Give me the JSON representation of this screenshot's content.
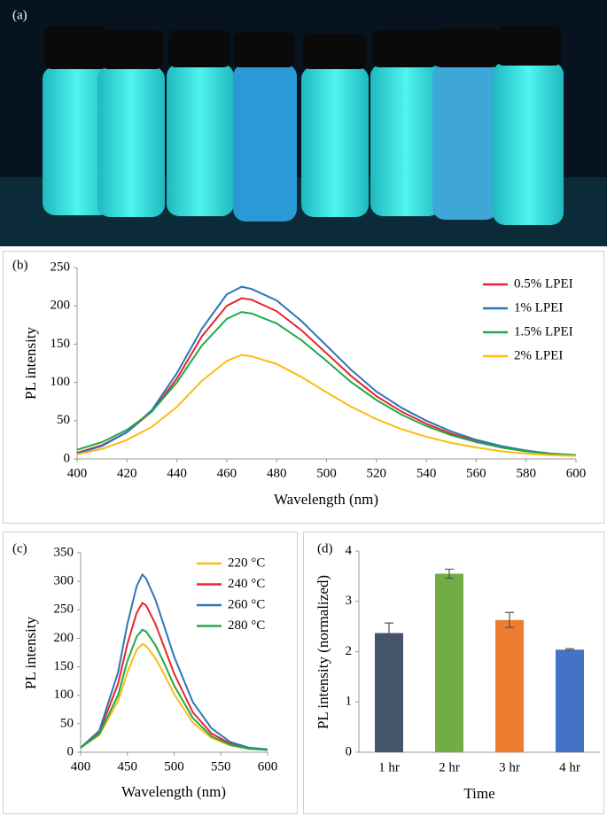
{
  "photo": {
    "label": "(a)"
  },
  "chart_data": [
    {
      "type": "line",
      "panel_label": "(b)",
      "xlabel": "Wavelength (nm)",
      "ylabel": "PL intensity",
      "x": [
        400,
        410,
        420,
        430,
        440,
        450,
        460,
        466,
        470,
        480,
        490,
        500,
        510,
        520,
        530,
        540,
        550,
        560,
        570,
        580,
        590,
        600
      ],
      "series": [
        {
          "name": "0.5% LPEI",
          "color": "#e8262b",
          "values": [
            8,
            18,
            35,
            62,
            105,
            160,
            200,
            210,
            208,
            193,
            168,
            138,
            108,
            82,
            62,
            46,
            33,
            23,
            15,
            10,
            7,
            5
          ]
        },
        {
          "name": "1% LPEI",
          "color": "#2e75b6",
          "values": [
            7,
            17,
            35,
            64,
            112,
            170,
            215,
            225,
            222,
            207,
            180,
            148,
            116,
            88,
            67,
            50,
            36,
            25,
            17,
            11,
            7,
            5
          ]
        },
        {
          "name": "1.5% LPEI",
          "color": "#22a84a",
          "values": [
            12,
            22,
            38,
            62,
            100,
            148,
            183,
            192,
            190,
            177,
            155,
            128,
            100,
            77,
            58,
            43,
            31,
            22,
            15,
            10,
            7,
            5
          ]
        },
        {
          "name": "2% LPEI",
          "color": "#fdbb12",
          "values": [
            6,
            13,
            25,
            42,
            68,
            102,
            128,
            136,
            134,
            124,
            107,
            87,
            68,
            52,
            39,
            29,
            21,
            15,
            10,
            7,
            5,
            4
          ]
        }
      ],
      "xlim": [
        400,
        600
      ],
      "xticks": [
        400,
        420,
        440,
        460,
        480,
        500,
        520,
        540,
        560,
        580,
        600
      ],
      "ylim": [
        0,
        250
      ],
      "yticks": [
        0,
        50,
        100,
        150,
        200,
        250
      ],
      "legend": "upper right"
    },
    {
      "type": "line",
      "panel_label": "(c)",
      "xlabel": "Wavelength (nm)",
      "ylabel": "PL intensity",
      "x": [
        400,
        420,
        440,
        450,
        460,
        466,
        470,
        480,
        490,
        500,
        520,
        540,
        560,
        580,
        600
      ],
      "series": [
        {
          "name": "220 °C",
          "color": "#fdbb12",
          "values": [
            8,
            30,
            90,
            140,
            180,
            190,
            187,
            165,
            135,
            102,
            52,
            25,
            12,
            6,
            4
          ]
        },
        {
          "name": "240 °C",
          "color": "#e8262b",
          "values": [
            8,
            35,
            120,
            190,
            245,
            262,
            258,
            225,
            182,
            138,
            70,
            33,
            15,
            7,
            4
          ]
        },
        {
          "name": "260 °C",
          "color": "#2e75b6",
          "values": [
            8,
            38,
            140,
            225,
            292,
            312,
            305,
            268,
            218,
            168,
            88,
            42,
            18,
            8,
            5
          ]
        },
        {
          "name": "280 °C",
          "color": "#22a84a",
          "values": [
            8,
            32,
            100,
            160,
            203,
            215,
            212,
            188,
            154,
            117,
            60,
            28,
            13,
            6,
            4
          ]
        }
      ],
      "xlim": [
        400,
        600
      ],
      "xticks": [
        400,
        450,
        500,
        550,
        600
      ],
      "ylim": [
        0,
        350
      ],
      "yticks": [
        0,
        50,
        100,
        150,
        200,
        250,
        300,
        350
      ],
      "legend": "upper right"
    },
    {
      "type": "bar",
      "panel_label": "(d)",
      "xlabel": "Time",
      "ylabel": "PL intensity (normalized)",
      "categories": [
        "1 hr",
        "2 hr",
        "3 hr",
        "4 hr"
      ],
      "values": [
        2.37,
        3.55,
        2.63,
        2.04
      ],
      "errors": [
        0.2,
        0.09,
        0.15,
        0.02
      ],
      "colors": [
        "#44546a",
        "#70ad47",
        "#ed7d31",
        "#4472c4"
      ],
      "ylim": [
        0,
        4
      ],
      "yticks": [
        0,
        1,
        2,
        3,
        4
      ]
    }
  ]
}
